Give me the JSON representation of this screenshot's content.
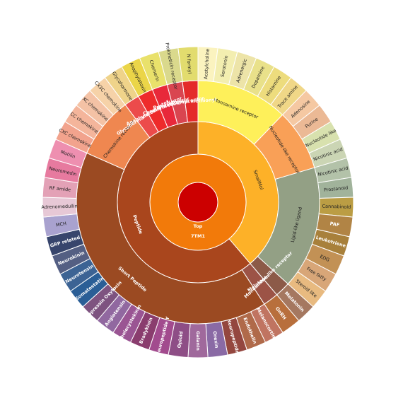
{
  "chart_data": {
    "type": "sunburst",
    "title": "",
    "root": {
      "name": "Top",
      "color": "#cc0000",
      "children": [
        {
          "name": "7TM1",
          "color": "#f27a0a",
          "children": [
            {
              "name": "SmallMol",
              "color": "#fdb128",
              "children": [
                {
                  "name": "Monoamine receptor",
                  "color": "#fef05a",
                  "children": [
                    {
                      "name": "Acetylcholine",
                      "value": 1,
                      "color": "#fbf3bf"
                    },
                    {
                      "name": "Serotonin",
                      "value": 1,
                      "color": "#f3eeb0"
                    },
                    {
                      "name": "Adrenergic",
                      "value": 1,
                      "color": "#ede4a8"
                    },
                    {
                      "name": "Dopamine",
                      "value": 1,
                      "color": "#e9e18a"
                    },
                    {
                      "name": "Histamine",
                      "value": 1,
                      "color": "#eddc7d"
                    },
                    {
                      "name": "Trace amine",
                      "value": 1,
                      "color": "#f0d787"
                    }
                  ]
                },
                {
                  "name": "Nucleotide-like receptor",
                  "color": "#f9a057",
                  "children": [
                    {
                      "name": "Adenosine",
                      "value": 1,
                      "color": "#f5c8a2"
                    },
                    {
                      "name": "Purine",
                      "value": 1,
                      "color": "#ebb995"
                    },
                    {
                      "name": "Nucleotide like",
                      "value": 1,
                      "color": "#d8e1ae"
                    },
                    {
                      "name": "Nicotinic acid",
                      "value": 1,
                      "color": "#cbd5b4"
                    }
                  ]
                },
                {
                  "name": "Lipid-like ligand",
                  "color": "#93a085",
                  "children": [
                    {
                      "name": "Nicotinic acid",
                      "value": 1,
                      "color": "#b3c2a9"
                    },
                    {
                      "name": "Prostanoid",
                      "value": 1,
                      "color": "#a1b39b"
                    },
                    {
                      "name": "Cannabinoid",
                      "value": 1,
                      "color": "#bb9d44"
                    },
                    {
                      "name": "PAF",
                      "value": 1,
                      "color": "#b18445"
                    },
                    {
                      "name": "Leukotriene",
                      "value": 1,
                      "color": "#a8803b"
                    },
                    {
                      "name": "EDG",
                      "value": 1,
                      "color": "#c29155"
                    },
                    {
                      "name": "Free fatty",
                      "value": 1,
                      "color": "#d8a678"
                    },
                    {
                      "name": "Steroid like",
                      "value": 1,
                      "color": "#e8ba80"
                    }
                  ]
                },
                {
                  "name": "Monoamine-like receptor",
                  "color": "#8c5a48",
                  "children": [
                    {
                      "name": "Melatonin",
                      "value": 1,
                      "color": "#a57860"
                    }
                  ]
                }
              ]
            },
            {
              "name": "Peptide",
              "color": "#a9461d",
              "children": [
                {
                  "name": "Melatonin",
                  "color": "#9c5346",
                  "children": [
                    {
                      "name": "GnRH",
                      "value": 1,
                      "color": "#b86f3c"
                    }
                  ]
                },
                {
                  "name": "Short Peptide",
                  "color": "#9b4a22",
                  "children": [
                    {
                      "name": "Melanocortin",
                      "value": 1,
                      "color": "#c07461"
                    },
                    {
                      "name": "Endothelin",
                      "value": 1,
                      "color": "#b06a4a"
                    },
                    {
                      "name": "Neuropeptide",
                      "value": 1,
                      "color": "#94473f"
                    },
                    {
                      "name": "Orexin",
                      "value": 1,
                      "color": "#8a6aa5"
                    },
                    {
                      "name": "Galanin",
                      "value": 1,
                      "color": "#a0699c"
                    },
                    {
                      "name": "Opioid",
                      "value": 1,
                      "color": "#8e4e86"
                    },
                    {
                      "name": "Neuropeptide Y",
                      "value": 1,
                      "color": "#a24b8e"
                    },
                    {
                      "name": "Bradykinin",
                      "value": 1,
                      "color": "#8a3d6e"
                    },
                    {
                      "name": "Cholecystokinin",
                      "value": 1,
                      "color": "#9a5593"
                    },
                    {
                      "name": "Angiotensin",
                      "value": 1,
                      "color": "#9168a0"
                    },
                    {
                      "name": "Vasopressin Oxytocin",
                      "value": 1,
                      "color": "#7e5380"
                    },
                    {
                      "name": "Somatostatin",
                      "value": 1,
                      "color": "#2a5e96"
                    },
                    {
                      "name": "Neurotensin",
                      "value": 1,
                      "color": "#3c6394"
                    },
                    {
                      "name": "Neurokinin",
                      "value": 1,
                      "color": "#545f83"
                    },
                    {
                      "name": "GRP related",
                      "value": 1,
                      "color": "#37456c"
                    },
                    {
                      "name": "MCH",
                      "value": 1,
                      "color": "#a9a2cf"
                    },
                    {
                      "name": "Adrenomedullin",
                      "value": 1,
                      "color": "#e7c8d6"
                    },
                    {
                      "name": "RF amide",
                      "value": 1,
                      "color": "#e3a1b6"
                    },
                    {
                      "name": "Neuromedin",
                      "value": 1,
                      "color": "#e77a9f"
                    },
                    {
                      "name": "Motilin",
                      "value": 1,
                      "color": "#ee8fb0"
                    }
                  ]
                },
                {
                  "name": "Chemokine receptor",
                  "color": "#ef8750",
                  "children": [
                    {
                      "name": "CXC chemokine",
                      "value": 1,
                      "color": "#f2a38d"
                    },
                    {
                      "name": "CC chemokine",
                      "value": 1,
                      "color": "#f4b59b"
                    },
                    {
                      "name": "XC chemokine",
                      "value": 1,
                      "color": "#f4c2a5"
                    },
                    {
                      "name": "CX3C chemokine",
                      "value": 1,
                      "color": "#f6d2a8"
                    }
                  ]
                },
                {
                  "name": "Glycohormone receptor",
                  "color": "#ec4b4b",
                  "children": [
                    {
                      "name": "Glycohormone",
                      "value": 1,
                      "color": "#efd38a"
                    }
                  ]
                },
                {
                  "name": "Anaphylatoxin receptor",
                  "color": "#ee2b2b",
                  "children": [
                    {
                      "name": "Anaphylatoxin",
                      "value": 1,
                      "color": "#ebd548"
                    }
                  ]
                },
                {
                  "name": "Chemerin receptor",
                  "color": "#e8283a",
                  "children": [
                    {
                      "name": "Chemerin",
                      "value": 1,
                      "color": "#e9e16b"
                    }
                  ]
                },
                {
                  "name": "Prostanoid receptor",
                  "color": "#d94550",
                  "children": [
                    {
                      "name": "Prokineticin receptor",
                      "value": 1,
                      "color": "#dad98c"
                    }
                  ]
                },
                {
                  "name": "N formyl methionyl",
                  "color": "#e42a2a",
                  "children": [
                    {
                      "name": "N formyl",
                      "value": 1,
                      "color": "#e2dc6e"
                    }
                  ]
                }
              ]
            }
          ]
        }
      ]
    }
  }
}
